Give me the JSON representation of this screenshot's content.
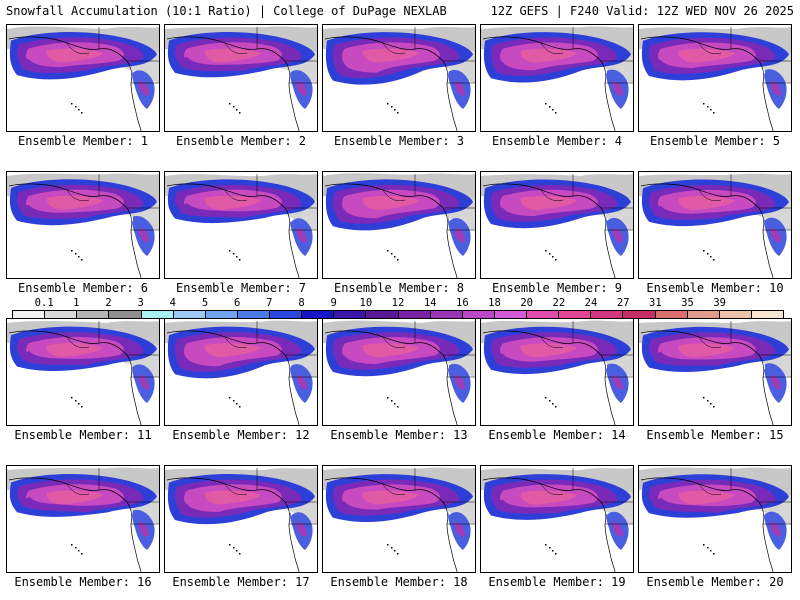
{
  "header": {
    "left_title": "Snowfall Accumulation (10:1 Ratio) | College of DuPage NEXLAB",
    "right_title": "12Z GEFS | F240 Valid: 12Z WED NOV 26 2025"
  },
  "panels": [
    {
      "member": 1,
      "caption": "Ensemble Member: 1"
    },
    {
      "member": 2,
      "caption": "Ensemble Member: 2"
    },
    {
      "member": 3,
      "caption": "Ensemble Member: 3"
    },
    {
      "member": 4,
      "caption": "Ensemble Member: 4"
    },
    {
      "member": 5,
      "caption": "Ensemble Member: 5"
    },
    {
      "member": 6,
      "caption": "Ensemble Member: 6"
    },
    {
      "member": 7,
      "caption": "Ensemble Member: 7"
    },
    {
      "member": 8,
      "caption": "Ensemble Member: 8"
    },
    {
      "member": 9,
      "caption": "Ensemble Member: 9"
    },
    {
      "member": 10,
      "caption": "Ensemble Member: 10"
    },
    {
      "member": 11,
      "caption": "Ensemble Member: 11"
    },
    {
      "member": 12,
      "caption": "Ensemble Member: 12"
    },
    {
      "member": 13,
      "caption": "Ensemble Member: 13"
    },
    {
      "member": 14,
      "caption": "Ensemble Member: 14"
    },
    {
      "member": 15,
      "caption": "Ensemble Member: 15"
    },
    {
      "member": 16,
      "caption": "Ensemble Member: 16"
    },
    {
      "member": 17,
      "caption": "Ensemble Member: 17"
    },
    {
      "member": 18,
      "caption": "Ensemble Member: 18"
    },
    {
      "member": 19,
      "caption": "Ensemble Member: 19"
    },
    {
      "member": 20,
      "caption": "Ensemble Member: 20"
    }
  ],
  "colorbar": {
    "labels": [
      "0.1",
      "1",
      "2",
      "3",
      "4",
      "5",
      "6",
      "7",
      "8",
      "9",
      "10",
      "12",
      "14",
      "16",
      "18",
      "20",
      "22",
      "24",
      "27",
      "31",
      "35",
      "39"
    ],
    "colors": [
      "#f2f2f2",
      "#d9d9d9",
      "#b4b4b4",
      "#8f8f8f",
      "#a8f0f4",
      "#9ccaf7",
      "#6fa4ee",
      "#4a79e8",
      "#2c48dd",
      "#1616c8",
      "#3a16a8",
      "#5a1894",
      "#7a22a4",
      "#9a36b4",
      "#b848c6",
      "#d25ad6",
      "#e04cae",
      "#e24496",
      "#d2387e",
      "#c43066",
      "#d86e6e",
      "#e29a8a",
      "#eec2a8",
      "#f8e6d2"
    ]
  }
}
